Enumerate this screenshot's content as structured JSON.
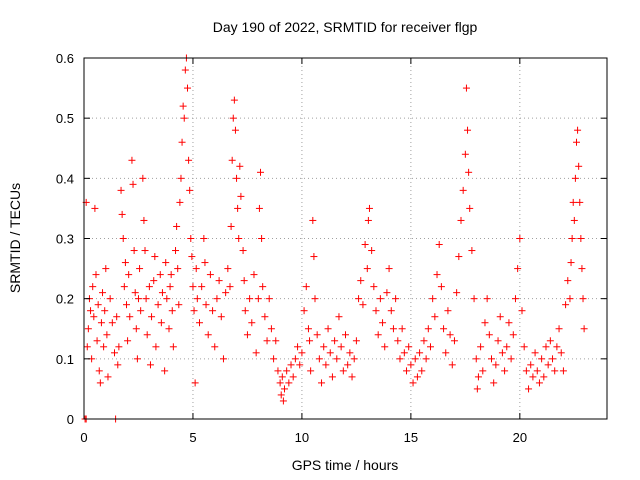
{
  "chart_data": {
    "type": "scatter",
    "title": "Day 190 of 2022, SRMTID for receiver flgp",
    "xlabel": "GPS time / hours",
    "ylabel": "SRMTID / TECUs",
    "xlim": [
      0,
      24
    ],
    "ylim": [
      0,
      0.6
    ],
    "xticks": [
      0,
      5,
      10,
      15,
      20
    ],
    "yticks": [
      0,
      0.1,
      0.2,
      0.3,
      0.4,
      0.5,
      0.6
    ],
    "xtick_labels": [
      "0",
      "5",
      "10",
      "15",
      "20"
    ],
    "ytick_labels": [
      "0",
      "0.1",
      "0.2",
      "0.3",
      "0.4",
      "0.5",
      "0.6"
    ],
    "grid": true,
    "marker": "+",
    "series": [
      {
        "name": "flgp",
        "color": "#ff0000",
        "points": [
          [
            0.05,
            0.0
          ],
          [
            0.1,
            0.0
          ],
          [
            0.1,
            0.36
          ],
          [
            0.15,
            0.12
          ],
          [
            0.2,
            0.15
          ],
          [
            0.25,
            0.2
          ],
          [
            0.3,
            0.18
          ],
          [
            0.35,
            0.1
          ],
          [
            0.4,
            0.22
          ],
          [
            0.45,
            0.17
          ],
          [
            0.5,
            0.35
          ],
          [
            0.55,
            0.24
          ],
          [
            0.6,
            0.13
          ],
          [
            0.65,
            0.19
          ],
          [
            0.7,
            0.08
          ],
          [
            0.75,
            0.06
          ],
          [
            0.8,
            0.16
          ],
          [
            0.85,
            0.21
          ],
          [
            0.9,
            0.12
          ],
          [
            0.95,
            0.18
          ],
          [
            1.0,
            0.25
          ],
          [
            1.05,
            0.14
          ],
          [
            1.1,
            0.07
          ],
          [
            1.2,
            0.2
          ],
          [
            1.3,
            0.16
          ],
          [
            1.4,
            0.11
          ],
          [
            1.45,
            0.0
          ],
          [
            1.5,
            0.17
          ],
          [
            1.55,
            0.09
          ],
          [
            1.6,
            0.12
          ],
          [
            1.7,
            0.38
          ],
          [
            1.75,
            0.34
          ],
          [
            1.8,
            0.3
          ],
          [
            1.85,
            0.22
          ],
          [
            1.9,
            0.26
          ],
          [
            1.95,
            0.19
          ],
          [
            2.0,
            0.13
          ],
          [
            2.05,
            0.24
          ],
          [
            2.1,
            0.17
          ],
          [
            2.2,
            0.43
          ],
          [
            2.25,
            0.39
          ],
          [
            2.3,
            0.28
          ],
          [
            2.35,
            0.21
          ],
          [
            2.4,
            0.15
          ],
          [
            2.45,
            0.1
          ],
          [
            2.5,
            0.2
          ],
          [
            2.55,
            0.25
          ],
          [
            2.6,
            0.18
          ],
          [
            2.7,
            0.4
          ],
          [
            2.75,
            0.33
          ],
          [
            2.8,
            0.28
          ],
          [
            2.85,
            0.2
          ],
          [
            2.9,
            0.14
          ],
          [
            3.0,
            0.22
          ],
          [
            3.05,
            0.09
          ],
          [
            3.1,
            0.17
          ],
          [
            3.2,
            0.23
          ],
          [
            3.25,
            0.27
          ],
          [
            3.3,
            0.12
          ],
          [
            3.4,
            0.19
          ],
          [
            3.5,
            0.24
          ],
          [
            3.55,
            0.16
          ],
          [
            3.6,
            0.21
          ],
          [
            3.7,
            0.08
          ],
          [
            3.75,
            0.26
          ],
          [
            3.8,
            0.2
          ],
          [
            3.9,
            0.15
          ],
          [
            3.95,
            0.22
          ],
          [
            4.0,
            0.24
          ],
          [
            4.05,
            0.18
          ],
          [
            4.1,
            0.12
          ],
          [
            4.2,
            0.28
          ],
          [
            4.25,
            0.32
          ],
          [
            4.3,
            0.25
          ],
          [
            4.35,
            0.19
          ],
          [
            4.4,
            0.36
          ],
          [
            4.45,
            0.4
          ],
          [
            4.5,
            0.46
          ],
          [
            4.55,
            0.52
          ],
          [
            4.6,
            0.5
          ],
          [
            4.65,
            0.58
          ],
          [
            4.7,
            0.6
          ],
          [
            4.75,
            0.55
          ],
          [
            4.8,
            0.43
          ],
          [
            4.85,
            0.38
          ],
          [
            4.9,
            0.3
          ],
          [
            4.95,
            0.27
          ],
          [
            5.0,
            0.22
          ],
          [
            5.05,
            0.18
          ],
          [
            5.1,
            0.06
          ],
          [
            5.15,
            0.25
          ],
          [
            5.2,
            0.2
          ],
          [
            5.3,
            0.16
          ],
          [
            5.4,
            0.22
          ],
          [
            5.5,
            0.3
          ],
          [
            5.55,
            0.26
          ],
          [
            5.6,
            0.19
          ],
          [
            5.7,
            0.14
          ],
          [
            5.8,
            0.24
          ],
          [
            5.9,
            0.18
          ],
          [
            6.0,
            0.12
          ],
          [
            6.1,
            0.2
          ],
          [
            6.2,
            0.23
          ],
          [
            6.3,
            0.17
          ],
          [
            6.4,
            0.1
          ],
          [
            6.5,
            0.21
          ],
          [
            6.6,
            0.25
          ],
          [
            6.7,
            0.22
          ],
          [
            6.75,
            0.32
          ],
          [
            6.8,
            0.43
          ],
          [
            6.85,
            0.5
          ],
          [
            6.9,
            0.53
          ],
          [
            6.95,
            0.48
          ],
          [
            7.0,
            0.4
          ],
          [
            7.05,
            0.35
          ],
          [
            7.1,
            0.3
          ],
          [
            7.15,
            0.42
          ],
          [
            7.2,
            0.37
          ],
          [
            7.3,
            0.28
          ],
          [
            7.35,
            0.23
          ],
          [
            7.4,
            0.18
          ],
          [
            7.5,
            0.14
          ],
          [
            7.6,
            0.2
          ],
          [
            7.7,
            0.16
          ],
          [
            7.8,
            0.24
          ],
          [
            7.9,
            0.11
          ],
          [
            8.0,
            0.2
          ],
          [
            8.05,
            0.35
          ],
          [
            8.1,
            0.41
          ],
          [
            8.15,
            0.3
          ],
          [
            8.2,
            0.22
          ],
          [
            8.3,
            0.17
          ],
          [
            8.4,
            0.13
          ],
          [
            8.5,
            0.2
          ],
          [
            8.6,
            0.15
          ],
          [
            8.7,
            0.1
          ],
          [
            8.8,
            0.13
          ],
          [
            8.9,
            0.08
          ],
          [
            9.0,
            0.06
          ],
          [
            9.05,
            0.04
          ],
          [
            9.1,
            0.07
          ],
          [
            9.15,
            0.03
          ],
          [
            9.2,
            0.05
          ],
          [
            9.3,
            0.08
          ],
          [
            9.4,
            0.06
          ],
          [
            9.5,
            0.09
          ],
          [
            9.6,
            0.07
          ],
          [
            9.7,
            0.1
          ],
          [
            9.8,
            0.12
          ],
          [
            9.9,
            0.09
          ],
          [
            10.0,
            0.11
          ],
          [
            10.1,
            0.18
          ],
          [
            10.2,
            0.22
          ],
          [
            10.3,
            0.15
          ],
          [
            10.35,
            0.13
          ],
          [
            10.4,
            0.08
          ],
          [
            10.5,
            0.33
          ],
          [
            10.55,
            0.27
          ],
          [
            10.6,
            0.2
          ],
          [
            10.7,
            0.14
          ],
          [
            10.8,
            0.1
          ],
          [
            10.9,
            0.06
          ],
          [
            11.0,
            0.12
          ],
          [
            11.1,
            0.09
          ],
          [
            11.2,
            0.15
          ],
          [
            11.3,
            0.11
          ],
          [
            11.4,
            0.07
          ],
          [
            11.5,
            0.13
          ],
          [
            11.6,
            0.1
          ],
          [
            11.7,
            0.17
          ],
          [
            11.8,
            0.12
          ],
          [
            11.9,
            0.08
          ],
          [
            12.0,
            0.14
          ],
          [
            12.1,
            0.09
          ],
          [
            12.2,
            0.11
          ],
          [
            12.3,
            0.07
          ],
          [
            12.4,
            0.1
          ],
          [
            12.5,
            0.13
          ],
          [
            12.6,
            0.2
          ],
          [
            12.7,
            0.23
          ],
          [
            12.8,
            0.19
          ],
          [
            12.9,
            0.29
          ],
          [
            13.0,
            0.25
          ],
          [
            13.05,
            0.33
          ],
          [
            13.1,
            0.35
          ],
          [
            13.2,
            0.28
          ],
          [
            13.3,
            0.22
          ],
          [
            13.4,
            0.18
          ],
          [
            13.5,
            0.14
          ],
          [
            13.6,
            0.2
          ],
          [
            13.7,
            0.16
          ],
          [
            13.8,
            0.12
          ],
          [
            13.9,
            0.21
          ],
          [
            14.0,
            0.25
          ],
          [
            14.1,
            0.18
          ],
          [
            14.2,
            0.15
          ],
          [
            14.3,
            0.2
          ],
          [
            14.4,
            0.13
          ],
          [
            14.5,
            0.1
          ],
          [
            14.6,
            0.15
          ],
          [
            14.7,
            0.11
          ],
          [
            14.8,
            0.08
          ],
          [
            14.9,
            0.12
          ],
          [
            15.0,
            0.09
          ],
          [
            15.1,
            0.06
          ],
          [
            15.2,
            0.1
          ],
          [
            15.3,
            0.07
          ],
          [
            15.4,
            0.11
          ],
          [
            15.5,
            0.08
          ],
          [
            15.6,
            0.13
          ],
          [
            15.7,
            0.1
          ],
          [
            15.8,
            0.15
          ],
          [
            15.9,
            0.12
          ],
          [
            16.0,
            0.2
          ],
          [
            16.1,
            0.17
          ],
          [
            16.2,
            0.24
          ],
          [
            16.3,
            0.29
          ],
          [
            16.4,
            0.22
          ],
          [
            16.5,
            0.15
          ],
          [
            16.6,
            0.11
          ],
          [
            16.7,
            0.18
          ],
          [
            16.8,
            0.14
          ],
          [
            16.9,
            0.09
          ],
          [
            17.0,
            0.13
          ],
          [
            17.1,
            0.21
          ],
          [
            17.2,
            0.27
          ],
          [
            17.3,
            0.33
          ],
          [
            17.4,
            0.38
          ],
          [
            17.5,
            0.44
          ],
          [
            17.55,
            0.55
          ],
          [
            17.6,
            0.48
          ],
          [
            17.65,
            0.41
          ],
          [
            17.7,
            0.35
          ],
          [
            17.8,
            0.28
          ],
          [
            17.9,
            0.2
          ],
          [
            18.0,
            0.1
          ],
          [
            18.05,
            0.05
          ],
          [
            18.1,
            0.07
          ],
          [
            18.2,
            0.12
          ],
          [
            18.3,
            0.08
          ],
          [
            18.4,
            0.16
          ],
          [
            18.5,
            0.2
          ],
          [
            18.6,
            0.14
          ],
          [
            18.7,
            0.1
          ],
          [
            18.8,
            0.06
          ],
          [
            18.9,
            0.09
          ],
          [
            19.0,
            0.13
          ],
          [
            19.1,
            0.17
          ],
          [
            19.2,
            0.11
          ],
          [
            19.3,
            0.08
          ],
          [
            19.4,
            0.12
          ],
          [
            19.5,
            0.16
          ],
          [
            19.6,
            0.1
          ],
          [
            19.7,
            0.14
          ],
          [
            19.8,
            0.2
          ],
          [
            19.9,
            0.25
          ],
          [
            20.0,
            0.3
          ],
          [
            20.1,
            0.18
          ],
          [
            20.2,
            0.12
          ],
          [
            20.3,
            0.08
          ],
          [
            20.4,
            0.05
          ],
          [
            20.5,
            0.09
          ],
          [
            20.6,
            0.07
          ],
          [
            20.7,
            0.11
          ],
          [
            20.8,
            0.08
          ],
          [
            20.9,
            0.06
          ],
          [
            21.0,
            0.1
          ],
          [
            21.1,
            0.07
          ],
          [
            21.2,
            0.12
          ],
          [
            21.3,
            0.09
          ],
          [
            21.4,
            0.13
          ],
          [
            21.5,
            0.1
          ],
          [
            21.6,
            0.08
          ],
          [
            21.7,
            0.12
          ],
          [
            21.8,
            0.15
          ],
          [
            21.9,
            0.11
          ],
          [
            22.0,
            0.08
          ],
          [
            22.1,
            0.19
          ],
          [
            22.2,
            0.23
          ],
          [
            22.3,
            0.2
          ],
          [
            22.35,
            0.26
          ],
          [
            22.4,
            0.3
          ],
          [
            22.45,
            0.36
          ],
          [
            22.5,
            0.33
          ],
          [
            22.55,
            0.4
          ],
          [
            22.6,
            0.46
          ],
          [
            22.65,
            0.48
          ],
          [
            22.7,
            0.42
          ],
          [
            22.75,
            0.36
          ],
          [
            22.8,
            0.3
          ],
          [
            22.85,
            0.25
          ],
          [
            22.9,
            0.2
          ],
          [
            22.95,
            0.15
          ]
        ]
      }
    ]
  }
}
